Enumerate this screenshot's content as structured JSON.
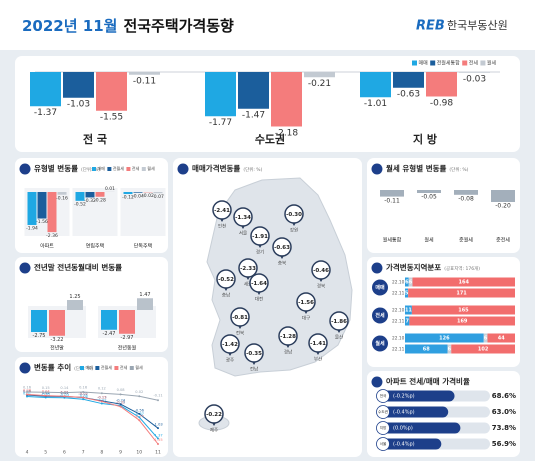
{
  "header": {
    "date": "2022년 11월",
    "title": "전국주택가격동향",
    "logo_mark": "REB",
    "logo": "한국부동산원"
  },
  "chart_data": [
    {
      "type": "grouped-bar",
      "categories": [
        "전 국",
        "수도권",
        "지 방"
      ],
      "series": [
        {
          "name": "매매",
          "color": "#1fa8e3",
          "values": [
            -1.37,
            -1.77,
            -1.01
          ]
        },
        {
          "name": "전월세통합",
          "color": "#1b5e9c",
          "values": [
            -1.03,
            -1.47,
            -0.63
          ]
        },
        {
          "name": "전세",
          "color": "#f47c7c",
          "values": [
            -1.55,
            -2.18,
            -0.98
          ]
        },
        {
          "name": "월세",
          "color": "#c3cad2",
          "values": [
            -0.11,
            -0.21,
            -0.03
          ]
        }
      ]
    },
    {
      "type": "grouped-bar",
      "title": "유형별 변동률",
      "unit": "(단위: %)",
      "categories": [
        "아파트",
        "연립주택",
        "단독주택"
      ],
      "series": [
        {
          "name": "매매",
          "color": "#1fa8e3",
          "values": [
            -1.94,
            -0.52,
            -0.12
          ]
        },
        {
          "name": "전월세",
          "color": "#1b5e9c",
          "values": [
            -1.56,
            -0.32,
            -0.04
          ]
        },
        {
          "name": "전세",
          "color": "#f47c7c",
          "values": [
            -2.36,
            -0.28,
            -0.02
          ]
        },
        {
          "name": "월세",
          "color": "#c3cad2",
          "values": [
            -0.16,
            0.01,
            -0.07
          ]
        }
      ]
    },
    {
      "type": "grouped-bar",
      "title": "전년말 전년동월대비 변동률",
      "categories": [
        "전년말",
        "전년동월"
      ],
      "series": [
        {
          "color": "#1fa8e3",
          "values": [
            -2.75,
            -2.47
          ]
        },
        {
          "color": "#f47c7c",
          "values": [
            -3.22,
            -2.97
          ]
        },
        {
          "color": "#b9c2cb",
          "values": [
            1.25,
            1.47
          ]
        }
      ]
    },
    {
      "type": "line",
      "title": "변동률 추이",
      "unit": "(단위: %)",
      "categories": [
        "4",
        "5",
        "6",
        "7",
        "8",
        "9",
        "10",
        "11"
      ],
      "series": [
        {
          "name": "매매",
          "color": "#1fa8e3",
          "values": [
            0.01,
            -0.02,
            -0.03,
            -0.08,
            -0.22,
            -0.29,
            -0.67,
            -1.37
          ]
        },
        {
          "name": "전월세",
          "color": "#1b5e9c",
          "values": [
            0.06,
            0.02,
            0.01,
            -0.02,
            -0.13,
            -0.24,
            -0.56,
            -1.03
          ]
        },
        {
          "name": "전세",
          "color": "#f47c7c",
          "values": [
            0.08,
            0.04,
            0.02,
            -0.02,
            -0.15,
            -0.32,
            -0.77,
            -1.55
          ]
        },
        {
          "name": "월세",
          "color": "#9aa6b2",
          "values": [
            0.16,
            0.15,
            0.14,
            0.16,
            0.12,
            0.08,
            0.02,
            -0.11
          ]
        }
      ]
    },
    {
      "type": "map",
      "title": "매매가격변동률",
      "unit": "(단위: %)",
      "categories": [
        "인천",
        "서울",
        "경기",
        "강원",
        "충북",
        "세종",
        "충남",
        "대전",
        "경북",
        "전북",
        "대구",
        "울산",
        "경남",
        "광주",
        "전남",
        "부산",
        "제주"
      ],
      "values": [
        -2.41,
        -1.34,
        -1.91,
        -0.3,
        -0.63,
        -2.33,
        -0.52,
        -1.64,
        -0.46,
        -0.81,
        -1.56,
        -1.86,
        -1.28,
        -1.42,
        -0.35,
        -1.41,
        -0.22
      ],
      "value_labels": [
        "-2.41",
        "-1.34",
        "-1.91",
        "-0.30",
        "-0.63",
        "-2.33",
        "-0.52",
        "-1.64",
        "-0.46",
        "-0.81",
        "-1.56",
        "-1.86",
        "-1.28",
        "-1.42",
        "-0.35",
        "-1.41",
        "-0.22"
      ]
    },
    {
      "type": "bar",
      "title": "월세 유형별 변동률",
      "unit": "(단위: %)",
      "categories": [
        "월세통합",
        "월세",
        "준월세",
        "준전세"
      ],
      "values": [
        -0.11,
        -0.05,
        -0.08,
        -0.2
      ],
      "value_labels": [
        "-0.11",
        "-0.05",
        "-0.08",
        "-0.20"
      ],
      "color": "#a3afbb"
    },
    {
      "type": "stacked-barh",
      "title": "가격변동지역분포",
      "subtitle": "(공표지역: 176개)",
      "groups": [
        "매매",
        "전세",
        "월세"
      ],
      "categories": [
        "22.10",
        "22.11",
        "22.10",
        "22.11",
        "22.10",
        "22.11"
      ],
      "series": [
        {
          "color": "#2f9fe0",
          "values": [
            6,
            5,
            11,
            7,
            126,
            68
          ]
        },
        {
          "color": "#c9d0d8",
          "values": [
            6,
            0,
            0,
            0,
            6,
            6
          ]
        },
        {
          "color": "#f26d6d",
          "values": [
            164,
            171,
            165,
            169,
            44,
            102
          ]
        }
      ]
    },
    {
      "type": "ratio-bar",
      "title": "아파트 전세/매매 가격비율",
      "categories": [
        "전국",
        "수도권",
        "지방",
        "서울"
      ],
      "changes": [
        "(-0.2%p)",
        "(-0.4%p)",
        "(0.0%p)",
        "(-0.4%p)"
      ],
      "values": [
        68.6,
        63.0,
        73.8,
        56.9
      ],
      "value_labels": [
        "68.6%",
        "63.0%",
        "73.8%",
        "56.9%"
      ],
      "color": "#1d3f8a"
    }
  ]
}
